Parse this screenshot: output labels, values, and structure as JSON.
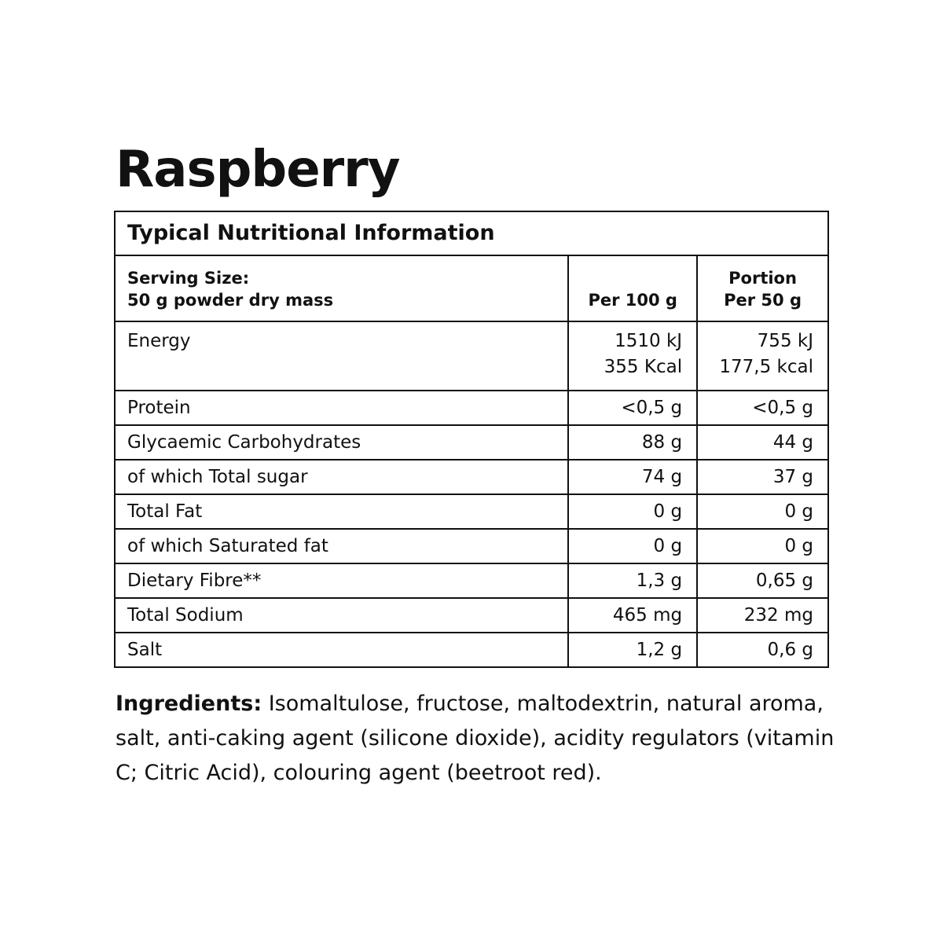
{
  "title": "Raspberry",
  "table": {
    "heading": "Typical Nutritional Information",
    "serving_label": "Serving Size:",
    "serving_value": "50 g powder dry mass",
    "col1": "Per 100 g",
    "col2_line1": "Portion",
    "col2_line2": "Per 50 g",
    "energy": {
      "label": "Energy",
      "v1a": "1510 kJ",
      "v1b": "355 Kcal",
      "v2a": "755 kJ",
      "v2b": "177,5 kcal"
    },
    "rows": [
      {
        "label": "Protein",
        "v1": "<0,5 g",
        "v2": "<0,5 g"
      },
      {
        "label": "Glycaemic Carbohydrates",
        "v1": "88 g",
        "v2": "44 g"
      },
      {
        "label": "of which Total sugar",
        "v1": "74 g",
        "v2": "37 g"
      },
      {
        "label": "Total Fat",
        "v1": "0 g",
        "v2": "0 g"
      },
      {
        "label": "of which Saturated fat",
        "v1": "0 g",
        "v2": "0 g"
      },
      {
        "label": "Dietary Fibre**",
        "v1": "1,3 g",
        "v2": "0,65 g"
      },
      {
        "label": "Total Sodium",
        "v1": "465 mg",
        "v2": "232 mg"
      },
      {
        "label": "Salt",
        "v1": "1,2 g",
        "v2": "0,6 g"
      }
    ]
  },
  "ingredients": {
    "label": "Ingredients:",
    "text": " Isomaltulose, fructose, maltodextrin, natural aroma, salt, anti-caking agent (silicone dioxide), acidity regulators (vitamin C; Citric Acid), colouring agent (beetroot red)."
  }
}
